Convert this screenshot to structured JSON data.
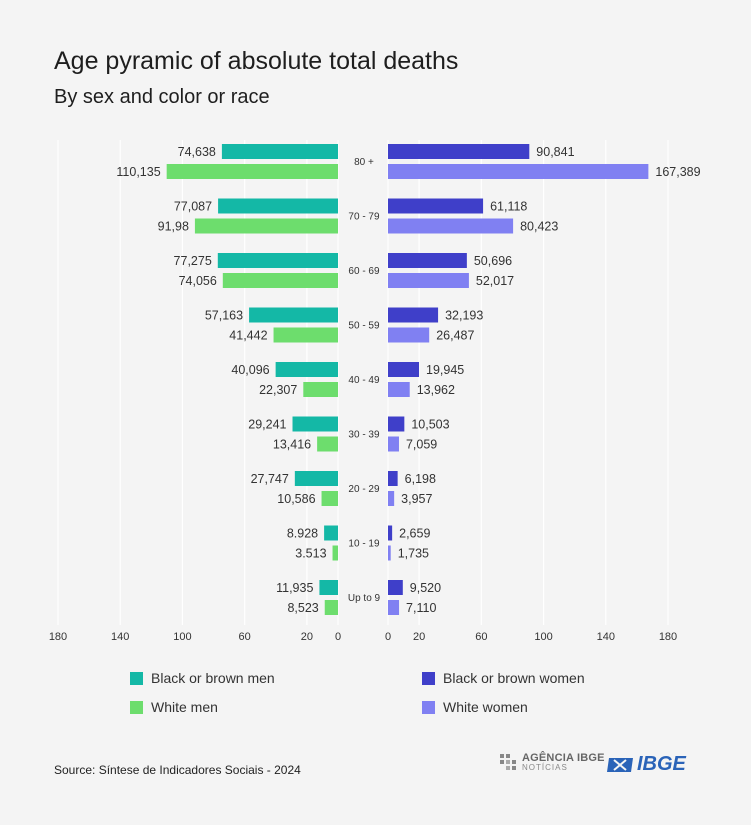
{
  "title": "Age pyramic of absolute total deaths",
  "subtitle": "By sex and color or race",
  "source": "Source: Síntese de Indicadores Sociais - 2024",
  "logos": {
    "agencia_line1": "AGÊNCIA IBGE",
    "agencia_line2": "NOTÍCIAS",
    "ibge": "IBGE"
  },
  "colors": {
    "black_brown_men": "#14b8a6",
    "white_men": "#6ddd6d",
    "black_brown_women": "#3f3fc9",
    "white_women": "#8080f2",
    "grid": "#ffffff"
  },
  "chart_data": {
    "type": "bar",
    "orientation": "horizontal",
    "layout": "population-pyramid",
    "title": "Age pyramic of absolute total deaths",
    "subtitle": "By sex and color or race",
    "categories": [
      "80 +",
      "70 - 79",
      "60 - 69",
      "50 - 59",
      "40 - 49",
      "30 - 39",
      "20 - 29",
      "10 - 19",
      "Up to 9"
    ],
    "left_ticks": [
      "180",
      "140",
      "100",
      "60",
      "20",
      "0"
    ],
    "right_ticks": [
      "0",
      "20",
      "60",
      "100",
      "140",
      "180"
    ],
    "xlim": [
      0,
      180
    ],
    "grid": true,
    "legend_position": "bottom",
    "series": [
      {
        "name": "Black or brown men",
        "side": "left",
        "color": "#14b8a6",
        "values": [
          74.638,
          77.087,
          77.275,
          57.163,
          40.096,
          29.241,
          27.747,
          8.928,
          11.935
        ],
        "labels": [
          "74,638",
          "77,087",
          "77,275",
          "57,163",
          "40,096",
          "29,241",
          "27,747",
          "8.928",
          "11,935"
        ]
      },
      {
        "name": "White men",
        "side": "left",
        "color": "#6ddd6d",
        "values": [
          110.135,
          91.98,
          74.056,
          41.442,
          22.307,
          13.416,
          10.586,
          3.513,
          8.523
        ],
        "labels": [
          "110,135",
          "91,98",
          "74,056",
          "41,442",
          "22,307",
          "13,416",
          "10,586",
          "3.513",
          "8,523"
        ]
      },
      {
        "name": "Black or brown women",
        "side": "right",
        "color": "#3f3fc9",
        "values": [
          90.841,
          61.118,
          50.696,
          32.193,
          19.945,
          10.503,
          6.198,
          2.659,
          9.52
        ],
        "labels": [
          "90,841",
          "61,118",
          "50,696",
          "32,193",
          "19,945",
          "10,503",
          "6,198",
          "2,659",
          "9,520"
        ]
      },
      {
        "name": "White women",
        "side": "right",
        "color": "#8080f2",
        "values": [
          167.389,
          80.423,
          52.017,
          26.487,
          13.962,
          7.059,
          3.957,
          1.735,
          7.11
        ],
        "labels": [
          "167,389",
          "80,423",
          "52,017",
          "26,487",
          "13,962",
          "7,059",
          "3,957",
          "1,735",
          "7,110"
        ]
      }
    ]
  }
}
